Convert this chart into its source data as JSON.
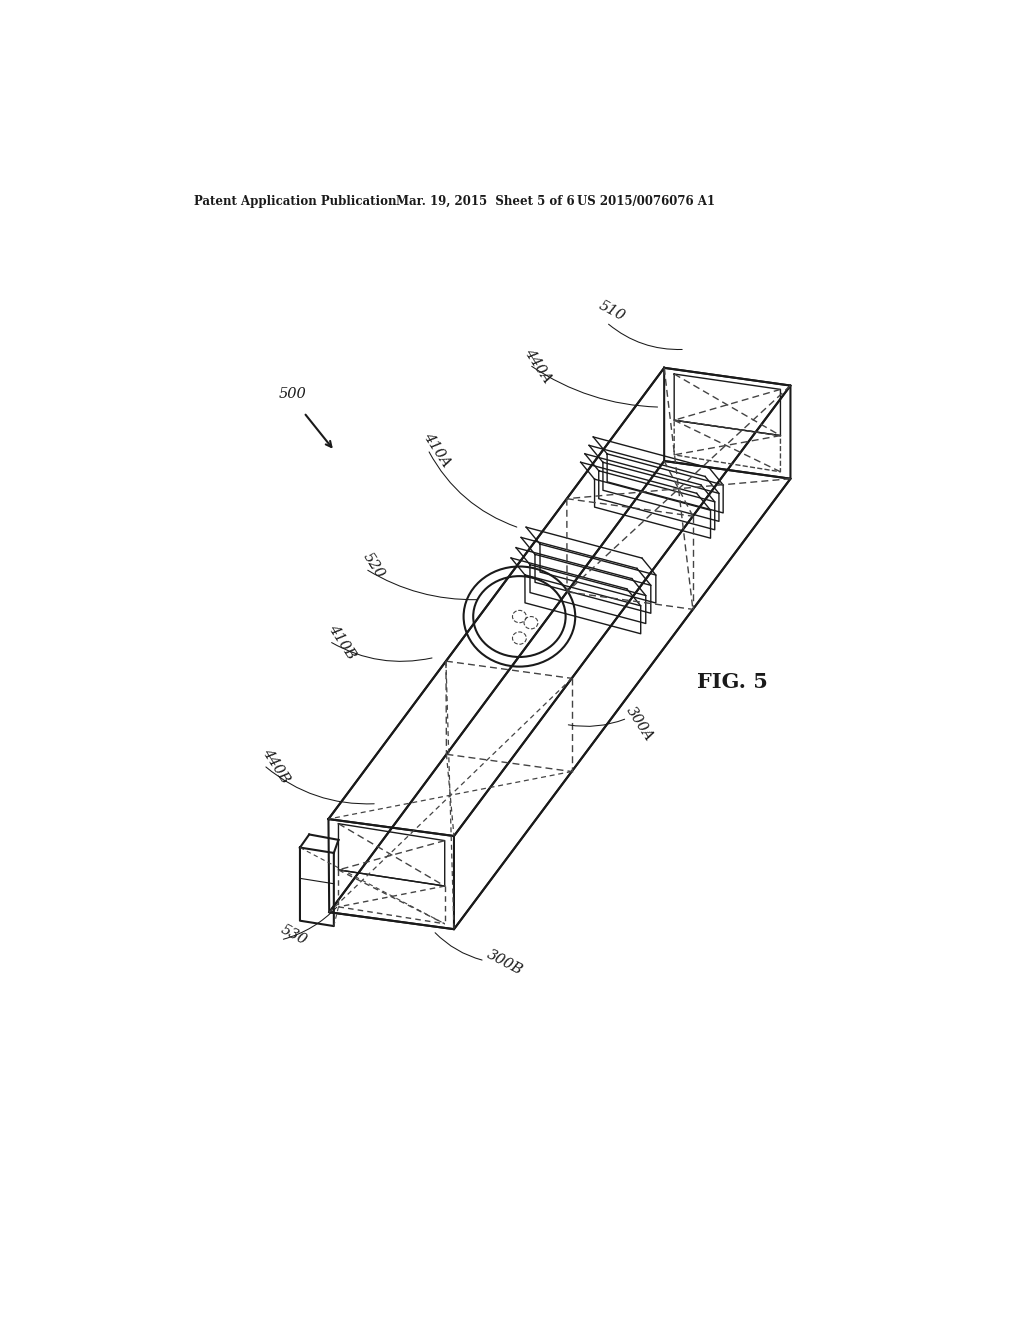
{
  "header_left": "Patent Application Publication",
  "header_mid": "Mar. 19, 2015  Sheet 5 of 6",
  "header_right": "US 2015/0076076 A1",
  "fig_label": "FIG. 5",
  "label_500": "500",
  "label_510": "510",
  "label_520": "520",
  "label_530": "530",
  "label_300A": "300A",
  "label_300B": "300B",
  "label_410A": "410A",
  "label_410B": "410B",
  "label_440A": "440A",
  "label_440B": "440B",
  "bg_color": "#ffffff",
  "line_color": "#1a1a1a",
  "dashed_color": "#444444",
  "tube_lw": 1.5,
  "inner_lw": 1.0,
  "dash_lw": 1.0
}
